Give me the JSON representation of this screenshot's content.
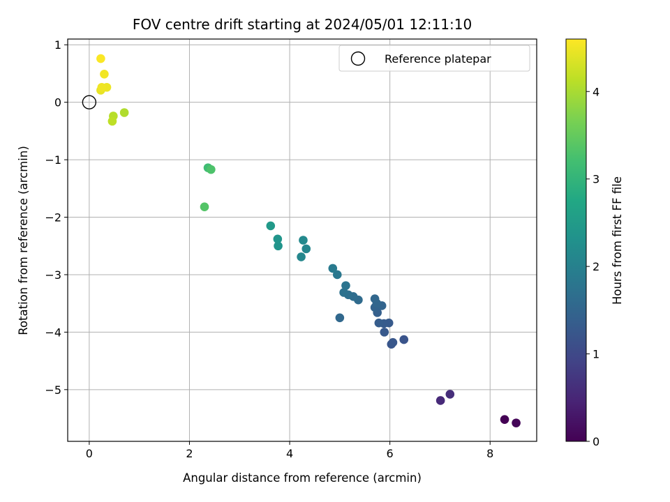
{
  "chart_data": {
    "type": "scatter",
    "title": "FOV centre drift starting at 2024/05/01 12:11:10",
    "xlabel": "Angular distance from reference (arcmin)",
    "ylabel": "Rotation from reference (arcmin)",
    "xlim": [
      -0.43,
      8.93
    ],
    "ylim": [
      -5.9,
      1.1
    ],
    "xticks": [
      0,
      2,
      4,
      6,
      8
    ],
    "yticks": [
      1,
      0,
      -1,
      -2,
      -3,
      -4,
      -5
    ],
    "grid": true,
    "legend": {
      "placement": "top-right",
      "entries": [
        "Reference platepar"
      ]
    },
    "reference_point": {
      "x": 0,
      "y": 0
    },
    "colorbar": {
      "label": "Hours from first FF file",
      "range": [
        0,
        4.6
      ],
      "ticks": [
        0,
        1,
        2,
        3,
        4
      ],
      "colormap": "viridis"
    },
    "points": [
      {
        "x": 8.29,
        "y": -5.52,
        "hours": 0.0
      },
      {
        "x": 8.52,
        "y": -5.58,
        "hours": 0.05
      },
      {
        "x": 7.01,
        "y": -5.19,
        "hours": 0.55
      },
      {
        "x": 7.2,
        "y": -5.08,
        "hours": 0.6
      },
      {
        "x": 6.28,
        "y": -4.13,
        "hours": 1.2
      },
      {
        "x": 6.03,
        "y": -4.21,
        "hours": 1.22
      },
      {
        "x": 6.06,
        "y": -4.18,
        "hours": 1.24
      },
      {
        "x": 5.89,
        "y": -4.0,
        "hours": 1.28
      },
      {
        "x": 5.98,
        "y": -3.84,
        "hours": 1.3
      },
      {
        "x": 5.88,
        "y": -3.85,
        "hours": 1.32
      },
      {
        "x": 5.78,
        "y": -3.84,
        "hours": 1.34
      },
      {
        "x": 5.75,
        "y": -3.66,
        "hours": 1.4
      },
      {
        "x": 5.7,
        "y": -3.57,
        "hours": 1.45
      },
      {
        "x": 5.84,
        "y": -3.54,
        "hours": 1.48
      },
      {
        "x": 5.74,
        "y": -3.5,
        "hours": 1.5
      },
      {
        "x": 5.7,
        "y": -3.42,
        "hours": 1.52
      },
      {
        "x": 5.0,
        "y": -3.75,
        "hours": 1.55
      },
      {
        "x": 5.37,
        "y": -3.44,
        "hours": 1.6
      },
      {
        "x": 5.27,
        "y": -3.38,
        "hours": 1.64
      },
      {
        "x": 5.17,
        "y": -3.35,
        "hours": 1.68
      },
      {
        "x": 5.08,
        "y": -3.31,
        "hours": 1.72
      },
      {
        "x": 5.12,
        "y": -3.19,
        "hours": 1.76
      },
      {
        "x": 4.95,
        "y": -3.0,
        "hours": 1.82
      },
      {
        "x": 4.86,
        "y": -2.89,
        "hours": 1.88
      },
      {
        "x": 4.33,
        "y": -2.55,
        "hours": 2.1
      },
      {
        "x": 4.23,
        "y": -2.69,
        "hours": 2.12
      },
      {
        "x": 4.27,
        "y": -2.4,
        "hours": 2.15
      },
      {
        "x": 3.77,
        "y": -2.5,
        "hours": 2.35
      },
      {
        "x": 3.76,
        "y": -2.38,
        "hours": 2.38
      },
      {
        "x": 3.62,
        "y": -2.15,
        "hours": 2.45
      },
      {
        "x": 2.3,
        "y": -1.82,
        "hours": 3.35
      },
      {
        "x": 2.37,
        "y": -1.14,
        "hours": 3.15
      },
      {
        "x": 2.43,
        "y": -1.17,
        "hours": 3.3
      },
      {
        "x": 0.7,
        "y": -0.18,
        "hours": 4.05
      },
      {
        "x": 0.48,
        "y": -0.24,
        "hours": 4.1
      },
      {
        "x": 0.46,
        "y": -0.33,
        "hours": 4.15
      },
      {
        "x": 0.23,
        "y": 0.21,
        "hours": 4.45
      },
      {
        "x": 0.35,
        "y": 0.26,
        "hours": 4.48
      },
      {
        "x": 0.25,
        "y": 0.26,
        "hours": 4.5
      },
      {
        "x": 0.3,
        "y": 0.49,
        "hours": 4.52
      },
      {
        "x": 0.23,
        "y": 0.76,
        "hours": 4.58
      }
    ]
  }
}
